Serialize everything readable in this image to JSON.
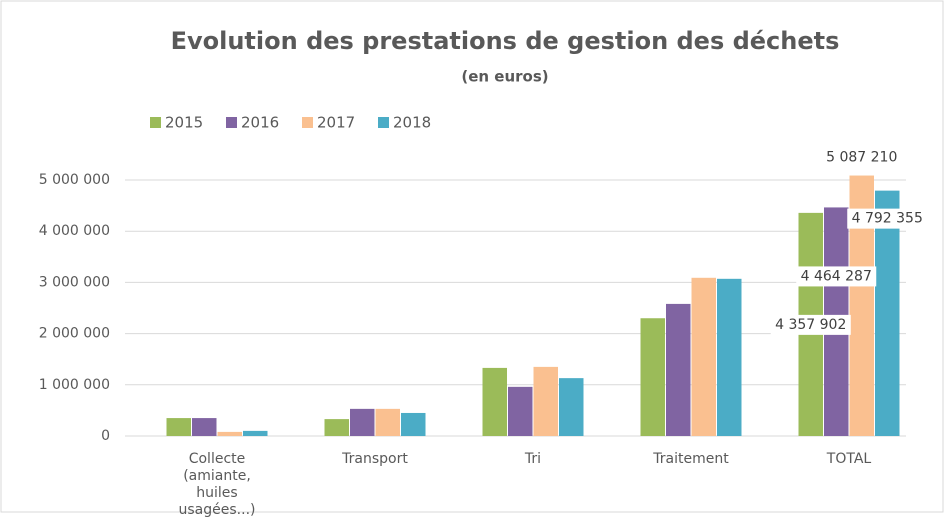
{
  "chart_data": {
    "type": "bar",
    "title": "Evolution des prestations de gestion des déchets",
    "subtitle": "(en euros)",
    "categories": [
      "Collecte (amiante, huiles usagées...)",
      "Transport",
      "Tri",
      "Traitement",
      "TOTAL"
    ],
    "series": [
      {
        "name": "2015",
        "color": "#9bbb59",
        "values": [
          350000,
          330000,
          1330000,
          2300000,
          4357902
        ],
        "value_labels": [
          null,
          null,
          null,
          null,
          "4 357 902"
        ]
      },
      {
        "name": "2016",
        "color": "#8064a2",
        "values": [
          350000,
          530000,
          960000,
          2580000,
          4464287
        ],
        "value_labels": [
          null,
          null,
          null,
          null,
          "4 464 287"
        ]
      },
      {
        "name": "2017",
        "color": "#fac090",
        "values": [
          80000,
          530000,
          1350000,
          3090000,
          5087210
        ],
        "value_labels": [
          null,
          null,
          null,
          null,
          "5 087 210"
        ]
      },
      {
        "name": "2018",
        "color": "#4bacc6",
        "values": [
          100000,
          450000,
          1130000,
          3070000,
          4792355
        ],
        "value_labels": [
          null,
          null,
          null,
          null,
          "4 792 355"
        ]
      }
    ],
    "ylim": [
      0,
      5000000
    ],
    "yticks": [
      0,
      {
        "value": 1000000,
        "label": "1 000 000"
      },
      {
        "value": 2000000,
        "label": "2 000 000"
      },
      {
        "value": 3000000,
        "label": "3 000 000"
      },
      {
        "value": 4000000,
        "label": "4 000 000"
      },
      {
        "value": 5000000,
        "label": "5 000 000"
      }
    ],
    "grid": true,
    "legend": "top-left"
  }
}
